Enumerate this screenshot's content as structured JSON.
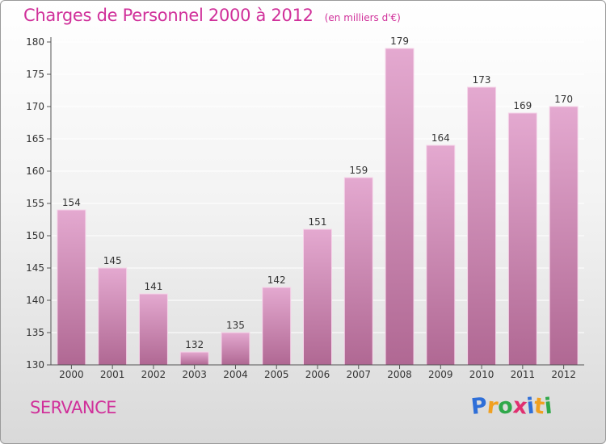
{
  "title": "Charges de Personnel 2000 à 2012",
  "subtitle": "(en milliers d'€)",
  "place": "SERVANCE",
  "logo": {
    "letters": [
      "P",
      "r",
      "o",
      "x",
      "i",
      "t",
      "i"
    ],
    "colors": [
      "#2f6fd8",
      "#f0a020",
      "#2fa84a",
      "#e03070",
      "#2f6fd8",
      "#f0a020",
      "#2fa84a"
    ]
  },
  "colors": {
    "accent": "#d0309a",
    "bar_top": "#e4a9d0",
    "bar_bottom": "#b06893",
    "axis": "#555555",
    "grid": "#ffffff"
  },
  "chart_data": {
    "type": "bar",
    "categories": [
      "2000",
      "2001",
      "2002",
      "2003",
      "2004",
      "2005",
      "2006",
      "2007",
      "2008",
      "2009",
      "2010",
      "2011",
      "2012"
    ],
    "values": [
      154,
      145,
      141,
      132,
      135,
      142,
      151,
      159,
      179,
      164,
      173,
      169,
      170
    ],
    "yticks": [
      130,
      135,
      140,
      145,
      150,
      155,
      160,
      165,
      170,
      175,
      180
    ],
    "ylim": [
      130,
      180
    ],
    "grid": true,
    "legend": "none"
  }
}
